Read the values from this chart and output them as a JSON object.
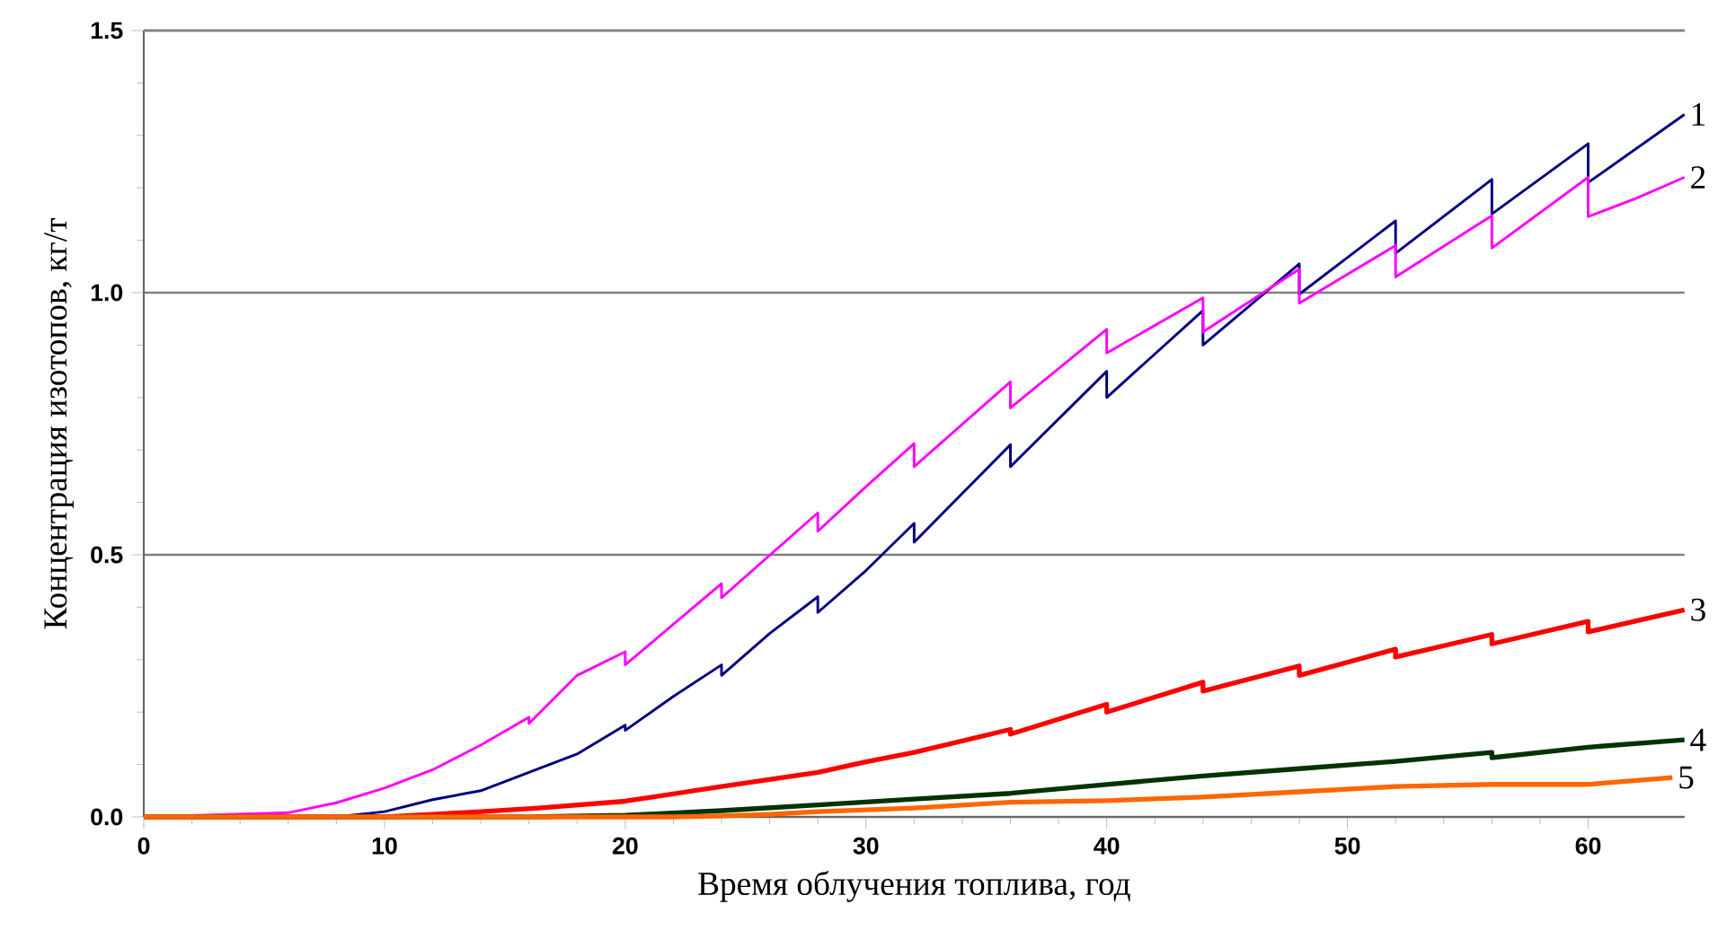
{
  "chart_data": {
    "type": "line",
    "xlabel": "Время облучения топлива, год",
    "ylabel": "Концентрация изотопов, кг/т",
    "xlim": [
      0,
      64
    ],
    "ylim": [
      0,
      1.5
    ],
    "xticks": [
      0,
      10,
      20,
      30,
      40,
      50,
      60
    ],
    "yticks": [
      {
        "value": 0,
        "label": "0.0"
      },
      {
        "value": 0.5,
        "label": "0.5"
      },
      {
        "value": 1,
        "label": "1.0"
      },
      {
        "value": 1.5,
        "label": "1.5"
      }
    ],
    "grid": "y",
    "legend": false,
    "marker": "none",
    "line_style": "solid",
    "series": [
      {
        "name": "1",
        "color": "#000080",
        "x": [
          0,
          8,
          10,
          12,
          14,
          16,
          18,
          20,
          20,
          22,
          24,
          24,
          26,
          28,
          28,
          30,
          32,
          32,
          36,
          36,
          40,
          40,
          44,
          44,
          48,
          48,
          52,
          52,
          56,
          56,
          60,
          60,
          64
        ],
        "values": [
          0,
          0,
          0.01,
          0.033,
          0.05,
          0.085,
          0.12,
          0.175,
          0.165,
          0.23,
          0.29,
          0.27,
          0.35,
          0.42,
          0.39,
          0.47,
          0.56,
          0.524,
          0.71,
          0.668,
          0.85,
          0.8,
          0.966,
          0.9,
          1.055,
          0.997,
          1.137,
          1.075,
          1.216,
          1.15,
          1.284,
          1.21,
          1.34
        ]
      },
      {
        "name": "2",
        "color": "#ff00ff",
        "x": [
          0,
          6,
          8,
          10,
          12,
          14,
          16,
          16,
          18,
          20,
          20,
          24,
          24,
          28,
          28,
          30,
          32,
          32,
          36,
          36,
          40,
          40,
          44,
          44,
          48,
          48,
          52,
          52,
          56,
          56,
          60,
          60,
          62,
          64
        ],
        "values": [
          0,
          0.008,
          0.027,
          0.055,
          0.09,
          0.137,
          0.19,
          0.178,
          0.27,
          0.315,
          0.29,
          0.445,
          0.418,
          0.58,
          0.545,
          0.63,
          0.712,
          0.668,
          0.83,
          0.78,
          0.93,
          0.885,
          0.99,
          0.925,
          1.045,
          0.98,
          1.09,
          1.03,
          1.147,
          1.085,
          1.22,
          1.145,
          1.18,
          1.22
        ]
      },
      {
        "name": "3",
        "color": "#ff0000",
        "x": [
          0,
          10,
          12,
          14,
          16.4,
          20,
          24,
          28,
          30,
          32,
          36,
          36,
          40,
          40,
          44,
          44,
          48,
          48,
          52,
          52,
          56,
          56,
          60,
          60,
          64
        ],
        "values": [
          0,
          0,
          0.005,
          0.01,
          0.017,
          0.03,
          0.058,
          0.085,
          0.105,
          0.123,
          0.167,
          0.158,
          0.215,
          0.2,
          0.257,
          0.24,
          0.288,
          0.27,
          0.32,
          0.305,
          0.348,
          0.33,
          0.373,
          0.353,
          0.395
        ]
      },
      {
        "name": "4",
        "color": "#003300",
        "x": [
          0,
          16,
          20,
          24,
          28,
          32,
          36,
          40,
          44,
          48,
          52,
          56,
          56,
          60,
          64
        ],
        "values": [
          0,
          0,
          0.003,
          0.012,
          0.023,
          0.034,
          0.045,
          0.062,
          0.078,
          0.092,
          0.106,
          0.123,
          0.113,
          0.133,
          0.147
        ]
      },
      {
        "name": "5",
        "color": "#ff6600",
        "x": [
          0,
          22,
          24,
          26,
          28,
          32,
          36,
          40,
          44,
          48,
          52,
          56,
          60,
          63.5
        ],
        "values": [
          0,
          0,
          0.002,
          0.005,
          0.01,
          0.017,
          0.028,
          0.031,
          0.038,
          0.048,
          0.058,
          0.062,
          0.062,
          0.075
        ]
      }
    ]
  }
}
